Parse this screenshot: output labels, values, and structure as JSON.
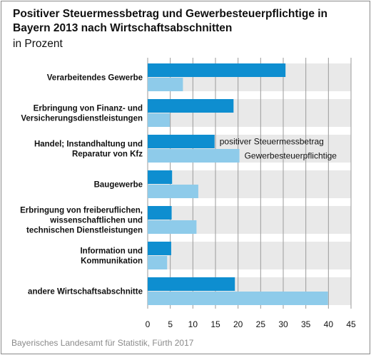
{
  "header": {
    "title": "Positiver Steuermessbetrag und Gewerbesteuerpflichtige in Bayern 2013 nach Wirtschaftsabschnitten",
    "subtitle": "in Prozent"
  },
  "footer": {
    "source": "Bayerisches Landesamt für Statistik, Fürth 2017"
  },
  "colors": {
    "series1": "#0e8ed0",
    "series2": "#8ecbea",
    "grid": "#9a9a9a"
  },
  "chart_data": {
    "type": "bar",
    "orientation": "horizontal",
    "title": "Positiver Steuermessbetrag und Gewerbesteuerpflichtige in Bayern 2013 nach Wirtschaftsabschnitten",
    "subtitle": "in Prozent",
    "categories": [
      [
        "Verarbeitendes Gewerbe"
      ],
      [
        "Erbringung von Finanz- und",
        "Versicherungsdienstleistungen"
      ],
      [
        "Handel; Instandhaltung und",
        "Reparatur von Kfz"
      ],
      [
        "Baugewerbe"
      ],
      [
        "Erbringung von freiberuflichen,",
        "wissenschaftlichen und",
        "technischen Dienstleistungen"
      ],
      [
        "Information und",
        "Kommunikation"
      ],
      [
        "andere Wirtschaftsabschnitte"
      ]
    ],
    "series": [
      {
        "name": "positiver Steuermessbetrag",
        "values": [
          30.5,
          19.0,
          14.8,
          5.4,
          5.3,
          5.2,
          19.3
        ]
      },
      {
        "name": "Gewerbesteuerpflichtige",
        "values": [
          7.8,
          4.9,
          20.3,
          11.2,
          10.8,
          4.3,
          39.9
        ]
      }
    ],
    "xlim": [
      0,
      45
    ],
    "xticks": [
      0,
      5,
      10,
      15,
      20,
      25,
      30,
      35,
      40,
      45
    ],
    "grid": true,
    "legend": "inline labels at third category"
  }
}
